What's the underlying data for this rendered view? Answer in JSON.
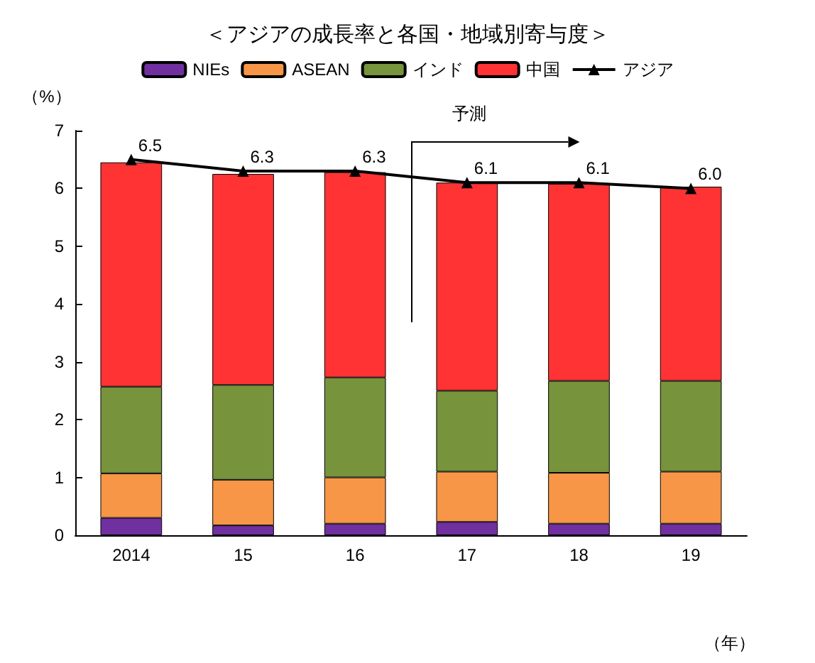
{
  "chart_data": {
    "type": "bar",
    "stacked": true,
    "title": "＜アジアの成長率と各国・地域別寄与度＞",
    "ylabel": "（%）",
    "xlabel": "（年）",
    "categories": [
      "2014",
      "15",
      "16",
      "17",
      "18",
      "19"
    ],
    "series": [
      {
        "name": "NIEs",
        "color": "#7030a0",
        "values": [
          0.3,
          0.17,
          0.2,
          0.23,
          0.2,
          0.2
        ]
      },
      {
        "name": "ASEAN",
        "color": "#f79646",
        "values": [
          0.77,
          0.79,
          0.8,
          0.87,
          0.88,
          0.9
        ]
      },
      {
        "name": "インド",
        "color": "#77933c",
        "values": [
          1.5,
          1.64,
          1.73,
          1.4,
          1.59,
          1.57
        ]
      },
      {
        "name": "中国",
        "color": "#ff3333",
        "values": [
          3.88,
          3.65,
          3.55,
          3.6,
          3.41,
          3.36
        ]
      },
      {
        "name": "アジア",
        "type": "line",
        "color": "#000000",
        "values": [
          6.5,
          6.3,
          6.3,
          6.1,
          6.1,
          6.0
        ],
        "value_labels": [
          "6.5",
          "6.3",
          "6.3",
          "6.1",
          "6.1",
          "6.0"
        ]
      }
    ],
    "annotations": [
      "予測"
    ],
    "ylim": [
      0,
      7
    ],
    "yticks": [
      0,
      1,
      2,
      3,
      4,
      5,
      6,
      7
    ],
    "grid": false,
    "legend": "top",
    "marker": "triangle"
  }
}
